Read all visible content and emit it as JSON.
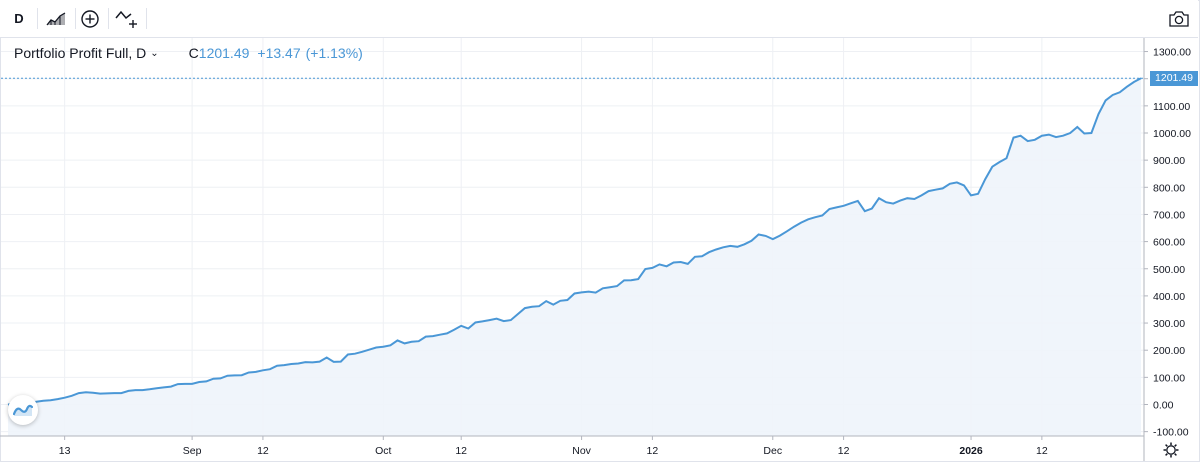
{
  "toolbar": {
    "interval_label": "D",
    "icons": [
      "bars-style-icon",
      "add-indicator-icon",
      "compare-icon",
      "camera-icon"
    ]
  },
  "legend": {
    "title": "Portfolio Profit Full, D",
    "close_prefix": "C",
    "close_value": "1201.49",
    "change": "+13.47",
    "change_pct": "(+1.13%)"
  },
  "last_price_label": "1201.49",
  "colors": {
    "line": "#4a97d6",
    "area": "#eef4fb",
    "grid": "#eef0f4",
    "badge": "#4a97d6"
  },
  "chart_data": {
    "type": "area",
    "title": "Portfolio Profit Full, D",
    "ylim": [
      -100,
      1300
    ],
    "y_ticks": [
      -100,
      0,
      100,
      200,
      300,
      400,
      500,
      600,
      700,
      800,
      900,
      1000,
      1100,
      1200,
      1300
    ],
    "y_tick_labels": [
      "-100.00",
      "0.00",
      "100.00",
      "200.00",
      "300.00",
      "400.00",
      "500.00",
      "600.00",
      "700.00",
      "800.00",
      "900.00",
      "1000.00",
      "1100.00",
      "1200.00",
      "1300.00"
    ],
    "x_tick_labels": [
      "13",
      "Sep",
      "12",
      "Oct",
      "12",
      "Nov",
      "12",
      "Dec",
      "12",
      "2026",
      "12"
    ],
    "x_tick_bold": [
      false,
      false,
      false,
      false,
      false,
      false,
      false,
      false,
      false,
      true,
      false
    ],
    "x_tick_index": [
      8,
      26,
      36,
      53,
      64,
      81,
      91,
      108,
      118,
      136,
      146
    ],
    "values": [
      0,
      3,
      5,
      8,
      10,
      14,
      16,
      20,
      25,
      32,
      42,
      45,
      43,
      40,
      41,
      42,
      42,
      50,
      53,
      53,
      56,
      60,
      63,
      66,
      75,
      76,
      76,
      83,
      85,
      95,
      96,
      106,
      107,
      108,
      118,
      120,
      126,
      130,
      143,
      145,
      149,
      151,
      156,
      155,
      158,
      173,
      157,
      158,
      184,
      187,
      194,
      202,
      210,
      213,
      218,
      236,
      225,
      231,
      233,
      250,
      252,
      257,
      262,
      275,
      290,
      280,
      302,
      306,
      311,
      316,
      307,
      311,
      333,
      355,
      360,
      362,
      381,
      368,
      382,
      385,
      409,
      413,
      416,
      412,
      428,
      432,
      436,
      457,
      458,
      462,
      499,
      503,
      516,
      509,
      523,
      525,
      518,
      544,
      546,
      561,
      571,
      579,
      584,
      581,
      590,
      603,
      626,
      621,
      609,
      622,
      638,
      655,
      670,
      682,
      690,
      696,
      720,
      726,
      732,
      741,
      750,
      712,
      722,
      760,
      745,
      740,
      751,
      760,
      757,
      770,
      786,
      791,
      796,
      813,
      818,
      807,
      770,
      776,
      830,
      876,
      893,
      907,
      983,
      990,
      970,
      975,
      990,
      994,
      985,
      990,
      1000,
      1022,
      998,
      1000,
      1070,
      1120,
      1140,
      1150,
      1170,
      1188,
      1201.49
    ]
  }
}
